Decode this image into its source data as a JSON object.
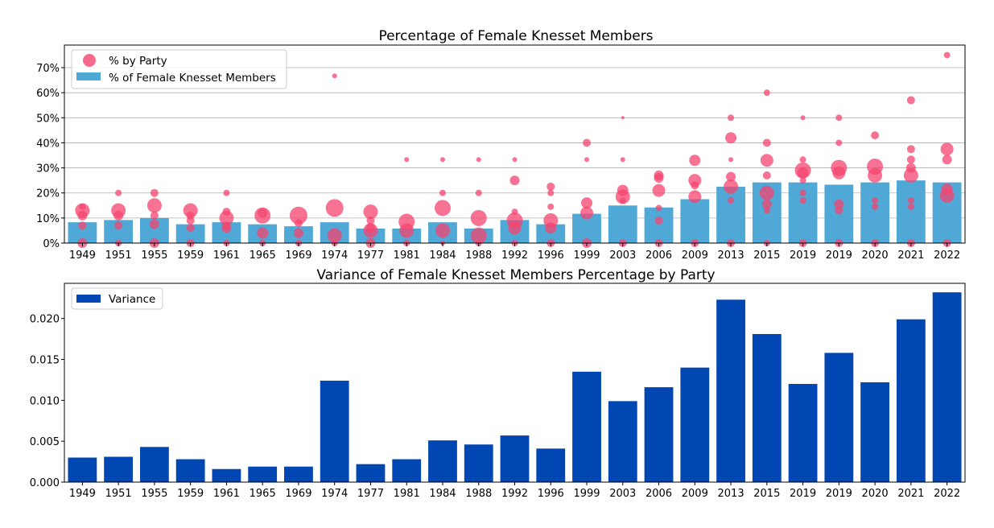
{
  "chart_data": [
    {
      "type": "bar",
      "title": "Percentage of Female Knesset Members",
      "categories": [
        "1949",
        "1951",
        "1955",
        "1959",
        "1961",
        "1965",
        "1969",
        "1974",
        "1977",
        "1981",
        "1984",
        "1988",
        "1992",
        "1996",
        "1999",
        "2003",
        "2006",
        "2009",
        "2013",
        "2015",
        "2019",
        "2019",
        "2020",
        "2021",
        "2022"
      ],
      "ylim": [
        0,
        0.79
      ],
      "yticks": [
        0,
        0.1,
        0.2,
        0.3,
        0.4,
        0.5,
        0.6,
        0.7
      ],
      "ytick_labels": [
        "0%",
        "10%",
        "20%",
        "30%",
        "40%",
        "50%",
        "60%",
        "70%"
      ],
      "grid": "y",
      "legend_position": "top-left",
      "series": [
        {
          "name": "% of Female Knesset Members",
          "kind": "bar",
          "color": "#4fa8d6",
          "values": [
            0.083,
            0.092,
            0.1,
            0.075,
            0.083,
            0.075,
            0.067,
            0.083,
            0.058,
            0.058,
            0.083,
            0.058,
            0.092,
            0.075,
            0.117,
            0.15,
            0.142,
            0.175,
            0.225,
            0.242,
            0.242,
            0.233,
            0.242,
            0.25,
            0.242
          ]
        },
        {
          "name": "% by Party",
          "kind": "scatter",
          "color": "#f5446f",
          "points": [
            [
              0,
              0.13,
              9
            ],
            [
              0,
              0.11,
              6
            ],
            [
              0,
              0.145,
              4
            ],
            [
              0,
              0.07,
              5
            ],
            [
              0,
              0.0,
              6
            ],
            [
              1,
              0.13,
              9
            ],
            [
              1,
              0.11,
              6
            ],
            [
              1,
              0.2,
              4
            ],
            [
              1,
              0.07,
              5
            ],
            [
              1,
              0.0,
              4
            ],
            [
              2,
              0.15,
              9
            ],
            [
              2,
              0.11,
              5
            ],
            [
              2,
              0.2,
              5
            ],
            [
              2,
              0.075,
              6
            ],
            [
              2,
              0.0,
              6
            ],
            [
              3,
              0.13,
              9
            ],
            [
              3,
              0.11,
              5
            ],
            [
              3,
              0.09,
              5
            ],
            [
              3,
              0.06,
              5
            ],
            [
              3,
              0.0,
              5
            ],
            [
              4,
              0.1,
              9
            ],
            [
              4,
              0.125,
              5
            ],
            [
              4,
              0.2,
              4
            ],
            [
              4,
              0.07,
              5
            ],
            [
              4,
              0.06,
              6
            ],
            [
              4,
              0.0,
              4
            ],
            [
              5,
              0.11,
              10
            ],
            [
              5,
              0.12,
              6
            ],
            [
              5,
              0.04,
              7
            ],
            [
              5,
              0.0,
              4
            ],
            [
              6,
              0.11,
              11
            ],
            [
              6,
              0.08,
              5
            ],
            [
              6,
              0.04,
              6
            ],
            [
              6,
              0.0,
              4
            ],
            [
              7,
              0.14,
              11
            ],
            [
              7,
              0.667,
              3
            ],
            [
              7,
              0.03,
              9
            ],
            [
              7,
              0.0,
              4
            ],
            [
              8,
              0.125,
              9
            ],
            [
              8,
              0.09,
              5
            ],
            [
              8,
              0.06,
              6
            ],
            [
              8,
              0.05,
              9
            ],
            [
              8,
              0.0,
              6
            ],
            [
              9,
              0.085,
              10
            ],
            [
              9,
              0.333,
              3
            ],
            [
              9,
              0.05,
              9
            ],
            [
              9,
              0.0,
              4
            ],
            [
              10,
              0.14,
              10
            ],
            [
              10,
              0.333,
              3
            ],
            [
              10,
              0.2,
              4
            ],
            [
              10,
              0.05,
              9
            ],
            [
              10,
              0.0,
              3
            ],
            [
              11,
              0.1,
              10
            ],
            [
              11,
              0.333,
              3
            ],
            [
              11,
              0.2,
              4
            ],
            [
              11,
              0.03,
              10
            ],
            [
              11,
              0.0,
              4
            ],
            [
              12,
              0.09,
              10
            ],
            [
              12,
              0.333,
              3
            ],
            [
              12,
              0.25,
              6
            ],
            [
              12,
              0.125,
              4
            ],
            [
              12,
              0.06,
              8
            ],
            [
              12,
              0.0,
              4
            ],
            [
              13,
              0.09,
              9
            ],
            [
              13,
              0.225,
              5
            ],
            [
              13,
              0.2,
              4
            ],
            [
              13,
              0.145,
              4
            ],
            [
              13,
              0.06,
              7
            ],
            [
              13,
              0.0,
              5
            ],
            [
              14,
              0.4,
              5
            ],
            [
              14,
              0.333,
              3
            ],
            [
              14,
              0.16,
              7
            ],
            [
              14,
              0.12,
              8
            ],
            [
              14,
              0.0,
              6
            ],
            [
              15,
              0.21,
              7
            ],
            [
              15,
              0.5,
              2
            ],
            [
              15,
              0.333,
              3
            ],
            [
              15,
              0.185,
              9
            ],
            [
              15,
              0.17,
              4
            ],
            [
              15,
              0.0,
              5
            ],
            [
              16,
              0.27,
              6
            ],
            [
              16,
              0.26,
              6
            ],
            [
              16,
              0.21,
              8
            ],
            [
              16,
              0.14,
              4
            ],
            [
              16,
              0.09,
              5
            ],
            [
              16,
              0.0,
              5
            ],
            [
              17,
              0.33,
              7
            ],
            [
              17,
              0.25,
              8
            ],
            [
              17,
              0.23,
              5
            ],
            [
              17,
              0.185,
              8
            ],
            [
              17,
              0.0,
              5
            ],
            [
              18,
              0.42,
              7
            ],
            [
              18,
              0.5,
              4
            ],
            [
              18,
              0.333,
              3
            ],
            [
              18,
              0.265,
              6
            ],
            [
              18,
              0.225,
              9
            ],
            [
              18,
              0.17,
              4
            ],
            [
              18,
              0.0,
              5
            ],
            [
              19,
              0.6,
              4
            ],
            [
              19,
              0.4,
              5
            ],
            [
              19,
              0.33,
              8
            ],
            [
              19,
              0.27,
              5
            ],
            [
              19,
              0.2,
              9
            ],
            [
              19,
              0.155,
              6
            ],
            [
              19,
              0.13,
              4
            ],
            [
              19,
              0.0,
              4
            ],
            [
              20,
              0.29,
              10
            ],
            [
              20,
              0.28,
              7
            ],
            [
              20,
              0.5,
              3
            ],
            [
              20,
              0.333,
              4
            ],
            [
              20,
              0.25,
              4
            ],
            [
              20,
              0.2,
              4
            ],
            [
              20,
              0.17,
              4
            ],
            [
              20,
              0.0,
              5
            ],
            [
              21,
              0.3,
              10
            ],
            [
              21,
              0.5,
              4
            ],
            [
              21,
              0.4,
              4
            ],
            [
              21,
              0.28,
              8
            ],
            [
              21,
              0.155,
              6
            ],
            [
              21,
              0.13,
              5
            ],
            [
              21,
              0.0,
              5
            ],
            [
              22,
              0.305,
              10
            ],
            [
              22,
              0.43,
              5
            ],
            [
              22,
              0.27,
              9
            ],
            [
              22,
              0.17,
              4
            ],
            [
              22,
              0.145,
              4
            ],
            [
              22,
              0.0,
              5
            ],
            [
              23,
              0.57,
              5
            ],
            [
              23,
              0.375,
              5
            ],
            [
              23,
              0.333,
              5
            ],
            [
              23,
              0.3,
              6
            ],
            [
              23,
              0.27,
              9
            ],
            [
              23,
              0.17,
              4
            ],
            [
              23,
              0.145,
              4
            ],
            [
              23,
              0.0,
              5
            ],
            [
              24,
              0.75,
              4
            ],
            [
              24,
              0.375,
              8
            ],
            [
              24,
              0.333,
              6
            ],
            [
              24,
              0.215,
              7
            ],
            [
              24,
              0.19,
              9
            ],
            [
              24,
              0.0,
              5
            ]
          ]
        }
      ]
    },
    {
      "type": "bar",
      "title": "Variance of Female Knesset Members Percentage by Party",
      "categories": [
        "1949",
        "1951",
        "1955",
        "1959",
        "1961",
        "1965",
        "1969",
        "1974",
        "1977",
        "1981",
        "1984",
        "1988",
        "1992",
        "1996",
        "1999",
        "2003",
        "2006",
        "2009",
        "2013",
        "2015",
        "2019",
        "2019",
        "2020",
        "2021",
        "2022"
      ],
      "ylim": [
        0,
        0.0243
      ],
      "yticks": [
        0,
        0.005,
        0.01,
        0.015,
        0.02
      ],
      "ytick_labels": [
        "0.000",
        "0.005",
        "0.010",
        "0.015",
        "0.020"
      ],
      "grid": "none",
      "legend_position": "top-left",
      "series": [
        {
          "name": "Variance",
          "color": "#0047b3",
          "values": [
            0.003,
            0.0031,
            0.0043,
            0.0028,
            0.0016,
            0.0019,
            0.0019,
            0.0124,
            0.0022,
            0.0028,
            0.0051,
            0.0046,
            0.0057,
            0.0041,
            0.0135,
            0.0099,
            0.0116,
            0.014,
            0.0223,
            0.0181,
            0.012,
            0.0158,
            0.0122,
            0.0199,
            0.0232
          ]
        }
      ]
    }
  ]
}
